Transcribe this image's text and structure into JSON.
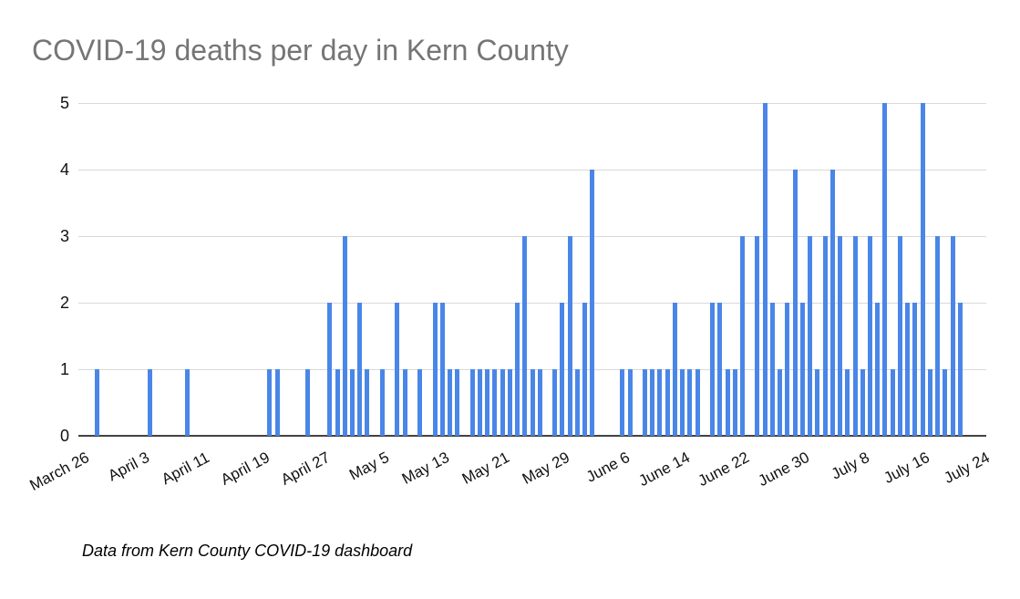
{
  "chart": {
    "title": "COVID-19 deaths per day in Kern County",
    "caption": "Data from Kern County COVID-19 dashboard"
  },
  "chart_data": {
    "type": "bar",
    "title": "COVID-19 deaths per day in Kern County",
    "caption": "Data from Kern County COVID-19 dashboard",
    "xlabel": "",
    "ylabel": "",
    "ylim": [
      0,
      5
    ],
    "y_ticks": [
      0,
      1,
      2,
      3,
      4,
      5
    ],
    "x_tick_interval": 8,
    "x_tick_labels": [
      "March 26",
      "April 3",
      "April 11",
      "April 19",
      "April 27",
      "May 5",
      "May 13",
      "May 21",
      "May 29",
      "June 6",
      "June 14",
      "June 22",
      "June 30",
      "July 8",
      "July 16",
      "July 24"
    ],
    "grid": "horizontal",
    "legend": "none",
    "bar_color": "#4a86e8",
    "gridline_color": "#d9d9d9",
    "baseline_color": "#424242",
    "title_color": "#757575",
    "axis_text_color": "#111111",
    "categories": [
      "March 26",
      "March 27",
      "March 28",
      "March 29",
      "March 30",
      "March 31",
      "April 1",
      "April 2",
      "April 3",
      "April 4",
      "April 5",
      "April 6",
      "April 7",
      "April 8",
      "April 9",
      "April 10",
      "April 11",
      "April 12",
      "April 13",
      "April 14",
      "April 15",
      "April 16",
      "April 17",
      "April 18",
      "April 19",
      "April 20",
      "April 21",
      "April 22",
      "April 23",
      "April 24",
      "April 25",
      "April 26",
      "April 27",
      "April 28",
      "April 29",
      "April 30",
      "May 1",
      "May 2",
      "May 3",
      "May 4",
      "May 5",
      "May 6",
      "May 7",
      "May 8",
      "May 9",
      "May 10",
      "May 11",
      "May 12",
      "May 13",
      "May 14",
      "May 15",
      "May 16",
      "May 17",
      "May 18",
      "May 19",
      "May 20",
      "May 21",
      "May 22",
      "May 23",
      "May 24",
      "May 25",
      "May 26",
      "May 27",
      "May 28",
      "May 29",
      "May 30",
      "May 31",
      "June 1",
      "June 2",
      "June 3",
      "June 4",
      "June 5",
      "June 6",
      "June 7",
      "June 8",
      "June 9",
      "June 10",
      "June 11",
      "June 12",
      "June 13",
      "June 14",
      "June 15",
      "June 16",
      "June 17",
      "June 18",
      "June 19",
      "June 20",
      "June 21",
      "June 22",
      "June 23",
      "June 24",
      "June 25",
      "June 26",
      "June 27",
      "June 28",
      "June 29",
      "June 30",
      "July 1",
      "July 2",
      "July 3",
      "July 4",
      "July 5",
      "July 6",
      "July 7",
      "July 8",
      "July 9",
      "July 10",
      "July 11",
      "July 12",
      "July 13",
      "July 14",
      "July 15",
      "July 16",
      "July 17",
      "July 18",
      "July 19",
      "July 20",
      "July 21",
      "July 22",
      "July 23",
      "July 24"
    ],
    "values": [
      0,
      0,
      1,
      0,
      0,
      0,
      0,
      0,
      0,
      1,
      0,
      0,
      0,
      0,
      1,
      0,
      0,
      0,
      0,
      0,
      0,
      0,
      0,
      0,
      0,
      1,
      1,
      0,
      0,
      0,
      1,
      0,
      0,
      2,
      1,
      3,
      1,
      2,
      1,
      0,
      1,
      0,
      2,
      1,
      0,
      1,
      0,
      2,
      2,
      1,
      1,
      0,
      1,
      1,
      1,
      1,
      1,
      1,
      2,
      3,
      1,
      1,
      0,
      1,
      2,
      3,
      1,
      2,
      4,
      0,
      0,
      0,
      1,
      1,
      0,
      1,
      1,
      1,
      1,
      2,
      1,
      1,
      1,
      0,
      2,
      2,
      1,
      1,
      3,
      0,
      3,
      5,
      2,
      1,
      2,
      4,
      2,
      3,
      1,
      3,
      4,
      3,
      1,
      3,
      1,
      3,
      2,
      5,
      1,
      3,
      2,
      2,
      5,
      1,
      3,
      1,
      3,
      2,
      0,
      0,
      0
    ]
  }
}
